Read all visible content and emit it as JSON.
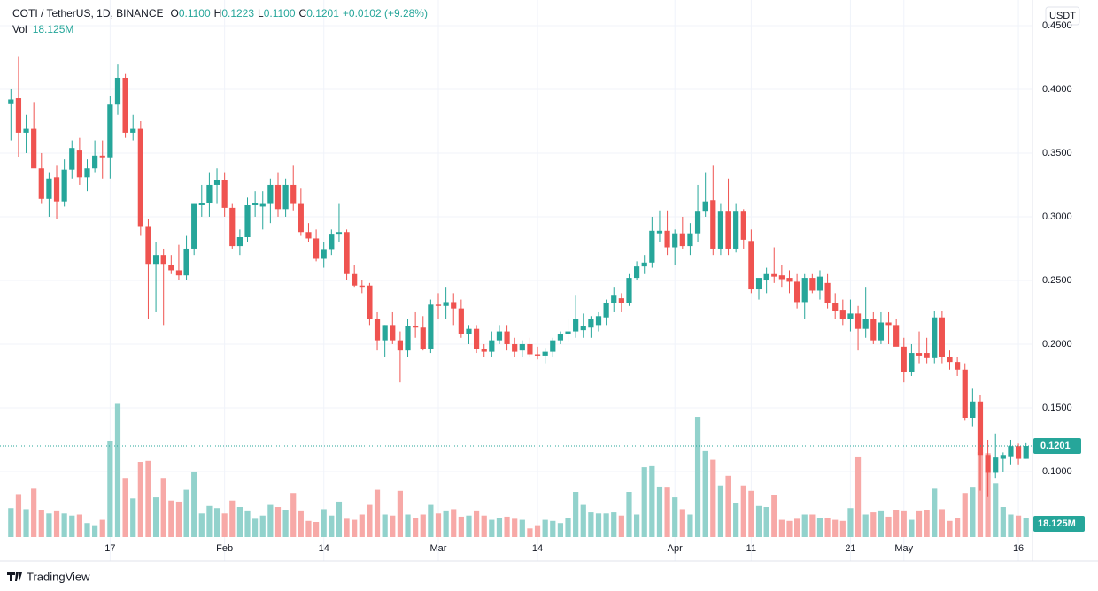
{
  "chart_data": {
    "type": "candlestick",
    "header": {
      "symbol": "COTI / TetherUS, 1D, BINANCE",
      "ohlc": [
        {
          "label": "O",
          "value": "0.1100"
        },
        {
          "label": "H",
          "value": "0.1223"
        },
        {
          "label": "L",
          "value": "0.1100"
        },
        {
          "label": "C",
          "value": "0.1201"
        }
      ],
      "change": "+0.0102 (+9.28%)",
      "volume_name": "Vol"
    },
    "currency": "USDT",
    "brand": "TradingView",
    "up_color": "#26a69a",
    "down_color": "#ef5350",
    "up_volume_color": "#92d2cc",
    "down_volume_color": "#f7a9a7",
    "ylim": [
      0.0486,
      0.4701
    ],
    "yticks": [
      {
        "value": 0.1,
        "label": "0.1000"
      },
      {
        "value": 0.15,
        "label": "0.1500"
      },
      {
        "value": 0.2,
        "label": "0.2000"
      },
      {
        "value": 0.25,
        "label": "0.2500"
      },
      {
        "value": 0.3,
        "label": "0.3000"
      },
      {
        "value": 0.35,
        "label": "0.3500"
      },
      {
        "value": 0.4,
        "label": "0.4000"
      },
      {
        "value": 0.45,
        "label": "0.4500"
      }
    ],
    "xlim": [
      -0.5,
      133.5
    ],
    "xticks": [
      {
        "value": 13,
        "label": "17"
      },
      {
        "value": 28,
        "label": "Feb"
      },
      {
        "value": 41,
        "label": "14"
      },
      {
        "value": 56,
        "label": "Mar"
      },
      {
        "value": 69,
        "label": "14"
      },
      {
        "value": 87,
        "label": "Apr"
      },
      {
        "value": 97,
        "label": "11"
      },
      {
        "value": 110,
        "label": "21"
      },
      {
        "value": 117,
        "label": "May"
      },
      {
        "value": 132,
        "label": "16"
      }
    ],
    "volume_ylim": [
      0,
      500
    ],
    "volume_label": "18.125M",
    "ohlc": [
      [
        0.389,
        0.4,
        0.36,
        0.392
      ],
      [
        0.393,
        0.426,
        0.347,
        0.366
      ],
      [
        0.366,
        0.38,
        0.35,
        0.369
      ],
      [
        0.369,
        0.39,
        0.34,
        0.338
      ],
      [
        0.338,
        0.35,
        0.31,
        0.314
      ],
      [
        0.314,
        0.335,
        0.3,
        0.33
      ],
      [
        0.331,
        0.34,
        0.298,
        0.312
      ],
      [
        0.312,
        0.345,
        0.308,
        0.337
      ],
      [
        0.337,
        0.36,
        0.33,
        0.354
      ],
      [
        0.352,
        0.362,
        0.325,
        0.331
      ],
      [
        0.331,
        0.345,
        0.32,
        0.338
      ],
      [
        0.338,
        0.36,
        0.335,
        0.348
      ],
      [
        0.348,
        0.36,
        0.33,
        0.346
      ],
      [
        0.346,
        0.395,
        0.33,
        0.388
      ],
      [
        0.388,
        0.42,
        0.38,
        0.409
      ],
      [
        0.409,
        0.412,
        0.362,
        0.366
      ],
      [
        0.366,
        0.38,
        0.36,
        0.369
      ],
      [
        0.369,
        0.375,
        0.285,
        0.292
      ],
      [
        0.292,
        0.298,
        0.22,
        0.263
      ],
      [
        0.263,
        0.28,
        0.225,
        0.27
      ],
      [
        0.27,
        0.275,
        0.215,
        0.263
      ],
      [
        0.262,
        0.27,
        0.255,
        0.258
      ],
      [
        0.258,
        0.278,
        0.25,
        0.254
      ],
      [
        0.254,
        0.285,
        0.25,
        0.275
      ],
      [
        0.275,
        0.31,
        0.27,
        0.31
      ],
      [
        0.309,
        0.325,
        0.3,
        0.311
      ],
      [
        0.311,
        0.335,
        0.3,
        0.325
      ],
      [
        0.325,
        0.338,
        0.31,
        0.329
      ],
      [
        0.329,
        0.335,
        0.3,
        0.307
      ],
      [
        0.307,
        0.31,
        0.275,
        0.277
      ],
      [
        0.277,
        0.29,
        0.27,
        0.284
      ],
      [
        0.284,
        0.315,
        0.28,
        0.309
      ],
      [
        0.309,
        0.32,
        0.3,
        0.311
      ],
      [
        0.308,
        0.32,
        0.29,
        0.31
      ],
      [
        0.31,
        0.33,
        0.295,
        0.325
      ],
      [
        0.325,
        0.335,
        0.3,
        0.306
      ],
      [
        0.306,
        0.33,
        0.3,
        0.325
      ],
      [
        0.325,
        0.34,
        0.305,
        0.31
      ],
      [
        0.31,
        0.322,
        0.285,
        0.288
      ],
      [
        0.288,
        0.295,
        0.28,
        0.283
      ],
      [
        0.283,
        0.29,
        0.265,
        0.267
      ],
      [
        0.267,
        0.28,
        0.26,
        0.274
      ],
      [
        0.274,
        0.29,
        0.27,
        0.286
      ],
      [
        0.286,
        0.31,
        0.28,
        0.288
      ],
      [
        0.288,
        0.29,
        0.25,
        0.255
      ],
      [
        0.255,
        0.262,
        0.245,
        0.246
      ],
      [
        0.246,
        0.25,
        0.24,
        0.245
      ],
      [
        0.246,
        0.248,
        0.215,
        0.22
      ],
      [
        0.22,
        0.225,
        0.195,
        0.203
      ],
      [
        0.203,
        0.215,
        0.19,
        0.215
      ],
      [
        0.215,
        0.225,
        0.2,
        0.203
      ],
      [
        0.203,
        0.21,
        0.17,
        0.195
      ],
      [
        0.195,
        0.22,
        0.19,
        0.214
      ],
      [
        0.214,
        0.225,
        0.205,
        0.213
      ],
      [
        0.213,
        0.222,
        0.195,
        0.196
      ],
      [
        0.196,
        0.235,
        0.193,
        0.231
      ],
      [
        0.231,
        0.24,
        0.22,
        0.23
      ],
      [
        0.23,
        0.245,
        0.22,
        0.233
      ],
      [
        0.233,
        0.24,
        0.215,
        0.228
      ],
      [
        0.228,
        0.235,
        0.205,
        0.208
      ],
      [
        0.208,
        0.215,
        0.2,
        0.212
      ],
      [
        0.212,
        0.215,
        0.193,
        0.196
      ],
      [
        0.196,
        0.2,
        0.19,
        0.194
      ],
      [
        0.194,
        0.21,
        0.19,
        0.203
      ],
      [
        0.203,
        0.215,
        0.2,
        0.21
      ],
      [
        0.21,
        0.215,
        0.195,
        0.2
      ],
      [
        0.2,
        0.205,
        0.19,
        0.194
      ],
      [
        0.195,
        0.203,
        0.19,
        0.2
      ],
      [
        0.2,
        0.205,
        0.19,
        0.192
      ],
      [
        0.192,
        0.198,
        0.188,
        0.191
      ],
      [
        0.191,
        0.197,
        0.185,
        0.194
      ],
      [
        0.194,
        0.205,
        0.19,
        0.203
      ],
      [
        0.203,
        0.21,
        0.2,
        0.208
      ],
      [
        0.208,
        0.22,
        0.202,
        0.21
      ],
      [
        0.21,
        0.238,
        0.205,
        0.22
      ],
      [
        0.211,
        0.224,
        0.205,
        0.214
      ],
      [
        0.213,
        0.222,
        0.205,
        0.22
      ],
      [
        0.215,
        0.225,
        0.21,
        0.222
      ],
      [
        0.221,
        0.235,
        0.215,
        0.232
      ],
      [
        0.232,
        0.245,
        0.225,
        0.238
      ],
      [
        0.236,
        0.24,
        0.225,
        0.232
      ],
      [
        0.232,
        0.255,
        0.23,
        0.252
      ],
      [
        0.252,
        0.265,
        0.25,
        0.261
      ],
      [
        0.261,
        0.27,
        0.255,
        0.264
      ],
      [
        0.264,
        0.3,
        0.26,
        0.289
      ],
      [
        0.287,
        0.305,
        0.28,
        0.289
      ],
      [
        0.289,
        0.305,
        0.27,
        0.276
      ],
      [
        0.276,
        0.29,
        0.262,
        0.287
      ],
      [
        0.287,
        0.3,
        0.275,
        0.277
      ],
      [
        0.277,
        0.295,
        0.27,
        0.287
      ],
      [
        0.287,
        0.325,
        0.28,
        0.304
      ],
      [
        0.304,
        0.335,
        0.3,
        0.312
      ],
      [
        0.313,
        0.34,
        0.27,
        0.275
      ],
      [
        0.275,
        0.31,
        0.27,
        0.304
      ],
      [
        0.304,
        0.33,
        0.27,
        0.275
      ],
      [
        0.275,
        0.31,
        0.272,
        0.304
      ],
      [
        0.304,
        0.306,
        0.275,
        0.282
      ],
      [
        0.281,
        0.29,
        0.24,
        0.243
      ],
      [
        0.243,
        0.25,
        0.235,
        0.252
      ],
      [
        0.25,
        0.26,
        0.24,
        0.255
      ],
      [
        0.255,
        0.276,
        0.248,
        0.253
      ],
      [
        0.254,
        0.262,
        0.245,
        0.251
      ],
      [
        0.252,
        0.258,
        0.24,
        0.249
      ],
      [
        0.249,
        0.255,
        0.228,
        0.233
      ],
      [
        0.233,
        0.255,
        0.22,
        0.252
      ],
      [
        0.252,
        0.255,
        0.24,
        0.242
      ],
      [
        0.242,
        0.258,
        0.235,
        0.253
      ],
      [
        0.248,
        0.255,
        0.228,
        0.232
      ],
      [
        0.232,
        0.24,
        0.22,
        0.226
      ],
      [
        0.227,
        0.235,
        0.215,
        0.22
      ],
      [
        0.22,
        0.235,
        0.21,
        0.224
      ],
      [
        0.224,
        0.23,
        0.195,
        0.212
      ],
      [
        0.212,
        0.245,
        0.205,
        0.22
      ],
      [
        0.22,
        0.225,
        0.2,
        0.203
      ],
      [
        0.203,
        0.225,
        0.2,
        0.217
      ],
      [
        0.217,
        0.225,
        0.2,
        0.215
      ],
      [
        0.215,
        0.22,
        0.2,
        0.198
      ],
      [
        0.198,
        0.205,
        0.17,
        0.178
      ],
      [
        0.178,
        0.2,
        0.175,
        0.193
      ],
      [
        0.193,
        0.21,
        0.185,
        0.191
      ],
      [
        0.193,
        0.205,
        0.185,
        0.189
      ],
      [
        0.189,
        0.226,
        0.185,
        0.221
      ],
      [
        0.221,
        0.226,
        0.185,
        0.19
      ],
      [
        0.19,
        0.195,
        0.18,
        0.186
      ],
      [
        0.186,
        0.19,
        0.175,
        0.18
      ],
      [
        0.18,
        0.185,
        0.14,
        0.142
      ],
      [
        0.142,
        0.165,
        0.135,
        0.155
      ],
      [
        0.155,
        0.16,
        0.085,
        0.113
      ],
      [
        0.113,
        0.125,
        0.08,
        0.099
      ],
      [
        0.099,
        0.13,
        0.095,
        0.111
      ],
      [
        0.11,
        0.115,
        0.1,
        0.113
      ],
      [
        0.112,
        0.125,
        0.105,
        0.12
      ],
      [
        0.12,
        0.122,
        0.105,
        0.11
      ],
      [
        0.11,
        0.1223,
        0.11,
        0.1201
      ]
    ],
    "volume": [
      27,
      40,
      26,
      45,
      25,
      22,
      24,
      22,
      20,
      21,
      13,
      11,
      16,
      89,
      124,
      55,
      36,
      70,
      71,
      37,
      55,
      34,
      33,
      44,
      61,
      22,
      29,
      27,
      22,
      34,
      28,
      24,
      17,
      20,
      30,
      28,
      25,
      41,
      24,
      15,
      14,
      26,
      20,
      33,
      17,
      16,
      21,
      30,
      44,
      21,
      20,
      43,
      21,
      18,
      21,
      30,
      22,
      24,
      26,
      19,
      20,
      24,
      20,
      16,
      18,
      19,
      17,
      16,
      8,
      11,
      16,
      15,
      13,
      18,
      42,
      30,
      23,
      22,
      22,
      23,
      20,
      42,
      21,
      65,
      66,
      47,
      46,
      37,
      26,
      21,
      112,
      80,
      72,
      48,
      57,
      32,
      48,
      43,
      29,
      28,
      39,
      16,
      15,
      17,
      21,
      21,
      18,
      18,
      16,
      15,
      27,
      75,
      21,
      23,
      24,
      19,
      25,
      24,
      16,
      24,
      25,
      45,
      26,
      15,
      18,
      41,
      46,
      79,
      78,
      50,
      28,
      21,
      20,
      18.125
    ]
  }
}
